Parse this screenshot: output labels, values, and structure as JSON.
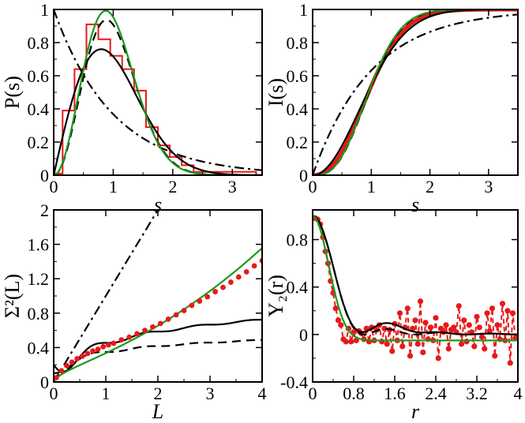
{
  "chart_data": [
    {
      "id": "Ps",
      "type": "line",
      "ylabel": "P(s)",
      "xlabel": "s",
      "xlim": [
        0,
        3.5
      ],
      "ylim": [
        0,
        1
      ],
      "xticks": [
        0,
        1,
        2,
        3
      ],
      "yticks": [
        0,
        0.2,
        0.4,
        0.6,
        0.8,
        1
      ],
      "xtick_labels": [
        "0",
        "1",
        "2",
        "3"
      ],
      "ytick_labels": [
        "0",
        "0.2",
        "0.4",
        "0.6",
        "0.8",
        "1"
      ],
      "series": [
        {
          "name": "histogram",
          "color": "#e8191a",
          "style": "step",
          "bin_edges": [
            0,
            0.15,
            0.35,
            0.55,
            0.75,
            0.95,
            1.15,
            1.35,
            1.55,
            1.75,
            1.95,
            2.15,
            2.35,
            3.4
          ],
          "values": [
            0.01,
            0.39,
            0.64,
            0.91,
            0.82,
            0.72,
            0.64,
            0.51,
            0.29,
            0.18,
            0.11,
            0.06,
            0.02
          ]
        },
        {
          "name": "poisson",
          "color": "#000000",
          "style": "dashdot",
          "formula": "poisson"
        },
        {
          "name": "goe",
          "color": "#000000",
          "style": "solid",
          "formula": "goe"
        },
        {
          "name": "gue",
          "color": "#000000",
          "style": "dashed",
          "formula": "gue"
        },
        {
          "name": "fit",
          "color": "#1a9a1a",
          "style": "solid",
          "formula": "fit"
        }
      ]
    },
    {
      "id": "Is",
      "type": "line",
      "ylabel": "I(s)",
      "xlabel": "s",
      "xlim": [
        0,
        3.5
      ],
      "ylim": [
        0,
        1
      ],
      "xticks": [
        0,
        1,
        2,
        3
      ],
      "yticks": [
        0,
        0.2,
        0.4,
        0.6,
        0.8,
        1
      ],
      "xtick_labels": [
        "0",
        "1",
        "2",
        "3"
      ],
      "ytick_labels": [
        "0",
        "0.2",
        "0.4",
        "0.6",
        "0.8",
        "1"
      ],
      "series": [
        {
          "name": "data",
          "color": "#e8191a",
          "style": "thick",
          "formula": "data_cdf"
        },
        {
          "name": "poisson",
          "color": "#000000",
          "style": "dashdot",
          "formula": "poisson_cdf"
        },
        {
          "name": "goe",
          "color": "#000000",
          "style": "solid",
          "formula": "goe_cdf"
        },
        {
          "name": "gue",
          "color": "#000000",
          "style": "dashed",
          "formula": "gue_cdf"
        },
        {
          "name": "fit",
          "color": "#1a9a1a",
          "style": "solid",
          "formula": "fit_cdf"
        }
      ]
    },
    {
      "id": "Sigma2",
      "type": "line",
      "ylabel": "Σ²(L)",
      "xlabel": "L",
      "xlim": [
        0,
        4
      ],
      "ylim": [
        0,
        2
      ],
      "xticks": [
        0,
        1,
        2,
        3,
        4
      ],
      "yticks": [
        0,
        0.4,
        0.8,
        1.2,
        1.6,
        2
      ],
      "xtick_labels": [
        "0",
        "1",
        "2",
        "3",
        "4"
      ],
      "ytick_labels": [
        "0",
        "0.4",
        "0.8",
        "1.2",
        "1.6",
        "2"
      ],
      "series": [
        {
          "name": "poisson",
          "color": "#000000",
          "style": "dashdot",
          "formula": "sigma_poisson"
        },
        {
          "name": "goe",
          "color": "#000000",
          "style": "solid",
          "formula": "sigma_goe"
        },
        {
          "name": "gue",
          "color": "#000000",
          "style": "dashed",
          "formula": "sigma_gue"
        },
        {
          "name": "fit",
          "color": "#1a9a1a",
          "style": "solid",
          "formula": "sigma_fit"
        },
        {
          "name": "data",
          "color": "#e8191a",
          "style": "dots",
          "x": [
            0.05,
            0.15,
            0.25,
            0.35,
            0.45,
            0.55,
            0.65,
            0.75,
            0.85,
            0.95,
            1.05,
            1.15,
            1.3,
            1.45,
            1.6,
            1.75,
            1.9,
            2.05,
            2.2,
            2.35,
            2.5,
            2.65,
            2.8,
            2.95,
            3.1,
            3.25,
            3.4,
            3.55,
            3.7,
            3.85,
            4.0
          ],
          "y": [
            0.05,
            0.13,
            0.19,
            0.23,
            0.27,
            0.3,
            0.33,
            0.36,
            0.38,
            0.41,
            0.43,
            0.45,
            0.49,
            0.52,
            0.56,
            0.6,
            0.64,
            0.68,
            0.73,
            0.78,
            0.83,
            0.89,
            0.94,
            0.99,
            1.05,
            1.1,
            1.16,
            1.22,
            1.28,
            1.35,
            1.41
          ]
        }
      ]
    },
    {
      "id": "Y2",
      "type": "line",
      "ylabel": "Y₂(r)",
      "xlabel": "r",
      "xlim": [
        0,
        4
      ],
      "ylim": [
        -0.4,
        1.05
      ],
      "xticks": [
        0,
        0.8,
        1.6,
        2.4,
        3.2,
        4
      ],
      "yticks": [
        -0.4,
        0,
        0.4,
        0.8
      ],
      "xtick_labels": [
        "0",
        "0.8",
        "1.6",
        "2.4",
        "3.2",
        "4"
      ],
      "ytick_labels": [
        "-0.4",
        "0",
        "0.4",
        "0.8"
      ],
      "series": [
        {
          "name": "data",
          "color": "#e8191a",
          "style": "dashed-dots",
          "x": [
            0.05,
            0.1,
            0.15,
            0.2,
            0.25,
            0.3,
            0.35,
            0.4,
            0.45,
            0.5,
            0.55,
            0.6,
            0.65,
            0.7,
            0.75,
            0.8,
            0.85,
            0.9,
            0.95,
            1.0,
            1.05,
            1.1,
            1.15,
            1.2,
            1.25,
            1.3,
            1.35,
            1.4,
            1.45,
            1.5,
            1.55,
            1.6,
            1.65,
            1.7,
            1.75,
            1.8,
            1.85,
            1.9,
            1.95,
            2.0,
            2.05,
            2.1,
            2.15,
            2.2,
            2.25,
            2.3,
            2.35,
            2.4,
            2.45,
            2.5,
            2.55,
            2.6,
            2.65,
            2.7,
            2.75,
            2.8,
            2.85,
            2.9,
            2.95,
            3.0,
            3.05,
            3.1,
            3.15,
            3.2,
            3.25,
            3.3,
            3.35,
            3.4,
            3.45,
            3.5,
            3.55,
            3.6,
            3.65,
            3.7,
            3.75,
            3.8,
            3.85,
            3.9,
            3.95,
            4.0
          ],
          "y": [
            0.98,
            0.97,
            0.93,
            0.82,
            0.7,
            0.6,
            0.45,
            0.35,
            0.22,
            0.12,
            0.08,
            -0.04,
            -0.06,
            0.05,
            -0.06,
            0.02,
            -0.05,
            0.03,
            0.01,
            -0.04,
            0.05,
            -0.06,
            0.06,
            -0.05,
            0.04,
            0.08,
            -0.06,
            0.05,
            -0.08,
            0.04,
            -0.14,
            0.09,
            -0.05,
            0.18,
            -0.1,
            0.06,
            0.22,
            -0.18,
            0.05,
            0.12,
            -0.08,
            0.28,
            -0.15,
            0.1,
            -0.04,
            0.06,
            -0.05,
            0.14,
            -0.2,
            0.05,
            0.02,
            0.08,
            -0.12,
            0.04,
            0.06,
            0.02,
            0.24,
            -0.08,
            0.12,
            -0.06,
            0.08,
            0.02,
            -0.1,
            0.15,
            0.06,
            -0.02,
            -0.12,
            0.18,
            0.03,
            0.22,
            -0.18,
            0.08,
            -0.04,
            0.26,
            -0.05,
            0.2,
            -0.24,
            0.18,
            -0.03,
            -0.02
          ]
        },
        {
          "name": "goe",
          "color": "#000000",
          "style": "solid",
          "formula": "y2_goe"
        },
        {
          "name": "gue",
          "color": "#000000",
          "style": "dashed",
          "formula": "y2_gue"
        },
        {
          "name": "fit",
          "color": "#1a9a1a",
          "style": "solid",
          "formula": "y2_fit"
        }
      ]
    }
  ]
}
